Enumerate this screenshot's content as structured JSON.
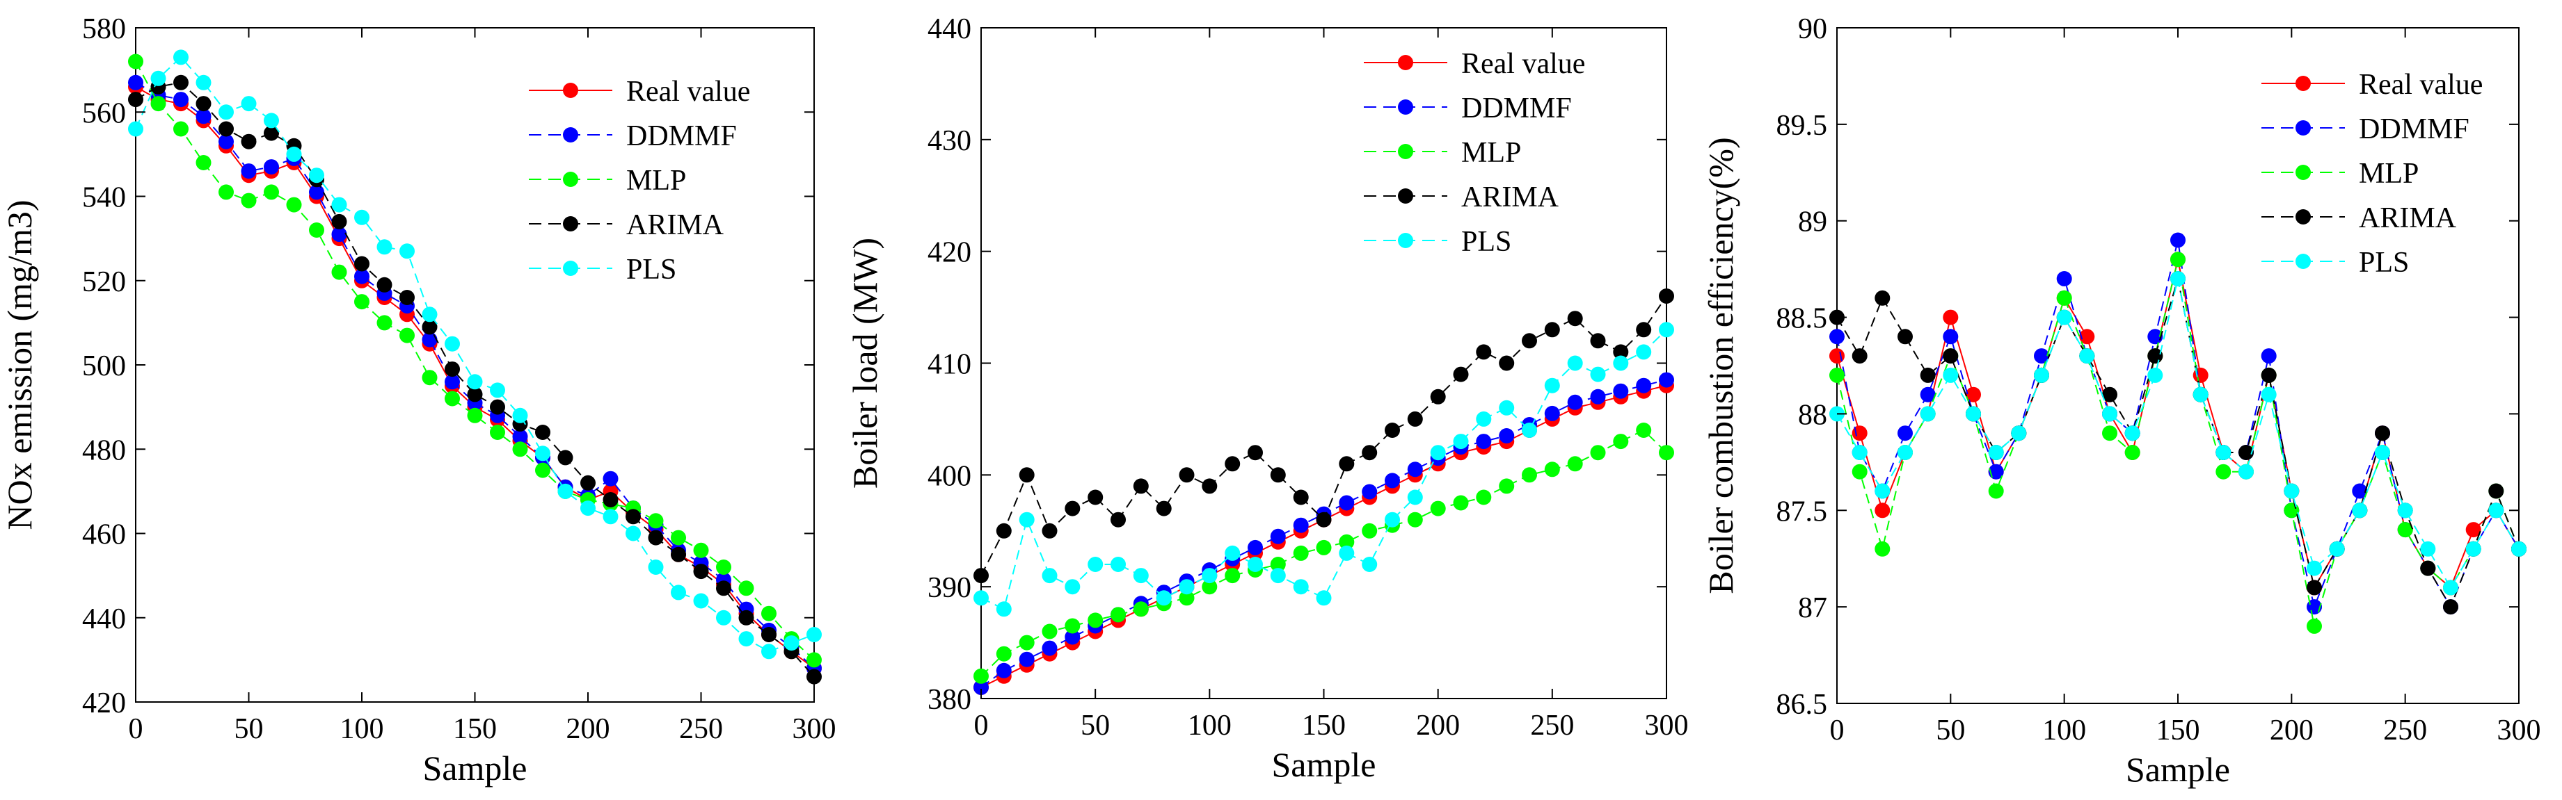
{
  "chart_data": [
    {
      "type": "line",
      "title": "",
      "xlabel": "Sample",
      "ylabel": "NOx emission (mg/m3)",
      "xlim": [
        0,
        300
      ],
      "ylim": [
        420,
        580
      ],
      "xticks": [
        0,
        50,
        100,
        150,
        200,
        250,
        300
      ],
      "yticks": [
        420,
        440,
        460,
        480,
        500,
        520,
        540,
        560,
        580
      ],
      "grid": false,
      "legend": "top-right",
      "markers": true,
      "series": [
        {
          "name": "Real value",
          "color": "#ff0000",
          "x": [
            0,
            10,
            20,
            30,
            40,
            50,
            60,
            70,
            80,
            90,
            100,
            110,
            120,
            130,
            140,
            150,
            160,
            170,
            180,
            190,
            200,
            210,
            220,
            230,
            240,
            250,
            260,
            270,
            280,
            290,
            300
          ],
          "y": [
            566,
            563,
            562,
            558,
            552,
            545,
            546,
            548,
            540,
            530,
            520,
            516,
            512,
            505,
            495,
            490,
            487,
            482,
            478,
            471,
            468,
            470,
            465,
            461,
            455,
            452,
            448,
            441,
            436,
            432,
            428
          ]
        },
        {
          "name": "DDMMF",
          "color": "#0000ff",
          "x": [
            0,
            10,
            20,
            30,
            40,
            50,
            60,
            70,
            80,
            90,
            100,
            110,
            120,
            130,
            140,
            150,
            160,
            170,
            180,
            190,
            200,
            210,
            220,
            230,
            240,
            250,
            260,
            270,
            280,
            290,
            300
          ],
          "y": [
            567,
            564,
            563,
            559,
            553,
            546,
            547,
            549,
            541,
            531,
            521,
            517,
            514,
            506,
            496,
            491,
            488,
            483,
            478,
            471,
            469,
            473,
            466,
            462,
            456,
            453,
            449,
            442,
            437,
            433,
            428
          ]
        },
        {
          "name": "MLP",
          "color": "#00ff00",
          "x": [
            0,
            10,
            20,
            30,
            40,
            50,
            60,
            70,
            80,
            90,
            100,
            110,
            120,
            130,
            140,
            150,
            160,
            170,
            180,
            190,
            200,
            210,
            220,
            230,
            240,
            250,
            260,
            270,
            280,
            290,
            300
          ],
          "y": [
            572,
            562,
            556,
            548,
            541,
            539,
            541,
            538,
            532,
            522,
            515,
            510,
            507,
            497,
            492,
            488,
            484,
            480,
            475,
            470,
            468,
            467,
            466,
            463,
            459,
            456,
            452,
            447,
            441,
            435,
            430
          ]
        },
        {
          "name": "ARIMA",
          "color": "#000000",
          "x": [
            0,
            10,
            20,
            30,
            40,
            50,
            60,
            70,
            80,
            90,
            100,
            110,
            120,
            130,
            140,
            150,
            160,
            170,
            180,
            190,
            200,
            210,
            220,
            230,
            240,
            250,
            260,
            270,
            280,
            290,
            300
          ],
          "y": [
            563,
            566,
            567,
            562,
            556,
            553,
            555,
            552,
            544,
            534,
            524,
            519,
            516,
            509,
            499,
            493,
            490,
            486,
            484,
            478,
            472,
            468,
            464,
            459,
            455,
            451,
            447,
            440,
            436,
            432,
            426
          ]
        },
        {
          "name": "PLS",
          "color": "#00ffff",
          "x": [
            0,
            10,
            20,
            30,
            40,
            50,
            60,
            70,
            80,
            90,
            100,
            110,
            120,
            130,
            140,
            150,
            160,
            170,
            180,
            190,
            200,
            210,
            220,
            230,
            240,
            250,
            260,
            270,
            280,
            290,
            300
          ],
          "y": [
            556,
            568,
            573,
            567,
            560,
            562,
            558,
            550,
            545,
            538,
            535,
            528,
            527,
            512,
            505,
            496,
            494,
            488,
            479,
            470,
            466,
            464,
            460,
            452,
            446,
            444,
            440,
            435,
            432,
            434,
            436
          ]
        }
      ]
    },
    {
      "type": "line",
      "title": "",
      "xlabel": "Sample",
      "ylabel": "Boiler load (MW)",
      "xlim": [
        0,
        300
      ],
      "ylim": [
        380,
        440
      ],
      "xticks": [
        0,
        50,
        100,
        150,
        200,
        250,
        300
      ],
      "yticks": [
        380,
        390,
        400,
        410,
        420,
        430,
        440
      ],
      "grid": false,
      "legend": "top-right",
      "markers": true,
      "series": [
        {
          "name": "Real value",
          "color": "#ff0000",
          "x": [
            0,
            10,
            20,
            30,
            40,
            50,
            60,
            70,
            80,
            90,
            100,
            110,
            120,
            130,
            140,
            150,
            160,
            170,
            180,
            190,
            200,
            210,
            220,
            230,
            240,
            250,
            260,
            270,
            280,
            290,
            300
          ],
          "y": [
            381,
            382,
            383,
            384,
            385,
            386,
            387,
            388,
            389,
            390,
            391,
            392,
            393,
            394,
            395,
            396,
            397,
            398,
            399,
            400,
            401,
            402,
            402.5,
            403,
            404,
            405,
            406,
            406.5,
            407,
            407.5,
            408
          ]
        },
        {
          "name": "DDMMF",
          "color": "#0000ff",
          "x": [
            0,
            10,
            20,
            30,
            40,
            50,
            60,
            70,
            80,
            90,
            100,
            110,
            120,
            130,
            140,
            150,
            160,
            170,
            180,
            190,
            200,
            210,
            220,
            230,
            240,
            250,
            260,
            270,
            280,
            290,
            300
          ],
          "y": [
            381,
            382.5,
            383.5,
            384.5,
            385.5,
            386.5,
            387.5,
            388.5,
            389.5,
            390.5,
            391.5,
            392.5,
            393.5,
            394.5,
            395.5,
            396.5,
            397.5,
            398.5,
            399.5,
            400.5,
            401.5,
            402.5,
            403,
            403.5,
            404.5,
            405.5,
            406.5,
            407,
            407.5,
            408,
            408.5
          ]
        },
        {
          "name": "MLP",
          "color": "#00ff00",
          "x": [
            0,
            10,
            20,
            30,
            40,
            50,
            60,
            70,
            80,
            90,
            100,
            110,
            120,
            130,
            140,
            150,
            160,
            170,
            180,
            190,
            200,
            210,
            220,
            230,
            240,
            250,
            260,
            270,
            280,
            290,
            300
          ],
          "y": [
            382,
            384,
            385,
            386,
            386.5,
            387,
            387.5,
            388,
            388.5,
            389,
            390,
            391,
            391.5,
            392,
            393,
            393.5,
            394,
            395,
            395.5,
            396,
            397,
            397.5,
            398,
            399,
            400,
            400.5,
            401,
            402,
            403,
            404,
            402
          ]
        },
        {
          "name": "ARIMA",
          "color": "#000000",
          "x": [
            0,
            10,
            20,
            30,
            40,
            50,
            60,
            70,
            80,
            90,
            100,
            110,
            120,
            130,
            140,
            150,
            160,
            170,
            180,
            190,
            200,
            210,
            220,
            230,
            240,
            250,
            260,
            270,
            280,
            290,
            300
          ],
          "y": [
            391,
            395,
            400,
            395,
            397,
            398,
            396,
            399,
            397,
            400,
            399,
            401,
            402,
            400,
            398,
            396,
            401,
            402,
            404,
            405,
            407,
            409,
            411,
            410,
            412,
            413,
            414,
            412,
            411,
            413,
            416
          ]
        },
        {
          "name": "PLS",
          "color": "#00ffff",
          "x": [
            0,
            10,
            20,
            30,
            40,
            50,
            60,
            70,
            80,
            90,
            100,
            110,
            120,
            130,
            140,
            150,
            160,
            170,
            180,
            190,
            200,
            210,
            220,
            230,
            240,
            250,
            260,
            270,
            280,
            290,
            300
          ],
          "y": [
            389,
            388,
            396,
            391,
            390,
            392,
            392,
            391,
            389,
            390,
            391,
            393,
            392,
            391,
            390,
            389,
            393,
            392,
            396,
            398,
            402,
            403,
            405,
            406,
            404,
            408,
            410,
            409,
            410,
            411,
            413
          ]
        }
      ]
    },
    {
      "type": "line",
      "title": "",
      "xlabel": "Sample",
      "ylabel": "Boiler combustion efficiency(%)",
      "xlim": [
        0,
        300
      ],
      "ylim": [
        86.5,
        90
      ],
      "xticks": [
        0,
        50,
        100,
        150,
        200,
        250,
        300
      ],
      "yticks": [
        86.5,
        87,
        87.5,
        88,
        88.5,
        89,
        89.5,
        90
      ],
      "grid": false,
      "legend": "top-right",
      "markers": true,
      "series": [
        {
          "name": "Real value",
          "color": "#ff0000",
          "x": [
            0,
            10,
            20,
            30,
            40,
            50,
            60,
            70,
            80,
            90,
            100,
            110,
            120,
            130,
            140,
            150,
            160,
            170,
            180,
            190,
            200,
            210,
            220,
            230,
            240,
            250,
            260,
            270,
            280,
            290,
            300
          ],
          "y": [
            88.3,
            87.9,
            87.5,
            87.8,
            88.0,
            88.5,
            88.1,
            87.7,
            87.9,
            88.2,
            88.6,
            88.4,
            88.0,
            87.8,
            88.3,
            88.8,
            88.2,
            87.8,
            87.7,
            88.2,
            87.6,
            87.1,
            87.3,
            87.5,
            87.9,
            87.4,
            87.2,
            87.1,
            87.4,
            87.5,
            87.3
          ]
        },
        {
          "name": "DDMMF",
          "color": "#0000ff",
          "x": [
            0,
            10,
            20,
            30,
            40,
            50,
            60,
            70,
            80,
            90,
            100,
            110,
            120,
            130,
            140,
            150,
            160,
            170,
            180,
            190,
            200,
            210,
            220,
            230,
            240,
            250,
            260,
            270,
            280,
            290,
            300
          ],
          "y": [
            88.4,
            87.8,
            87.6,
            87.9,
            88.1,
            88.4,
            88.0,
            87.7,
            87.9,
            88.3,
            88.7,
            88.3,
            88.0,
            87.9,
            88.4,
            88.9,
            88.1,
            87.8,
            87.8,
            88.3,
            87.5,
            87.0,
            87.3,
            87.6,
            87.9,
            87.4,
            87.2,
            87.0,
            87.3,
            87.5,
            87.3
          ]
        },
        {
          "name": "MLP",
          "color": "#00ff00",
          "x": [
            0,
            10,
            20,
            30,
            40,
            50,
            60,
            70,
            80,
            90,
            100,
            110,
            120,
            130,
            140,
            150,
            160,
            170,
            180,
            190,
            200,
            210,
            220,
            230,
            240,
            250,
            260,
            270,
            280,
            290,
            300
          ],
          "y": [
            88.2,
            87.7,
            87.3,
            87.8,
            88.0,
            88.3,
            88.0,
            87.6,
            87.9,
            88.2,
            88.6,
            88.3,
            87.9,
            87.8,
            88.3,
            88.8,
            88.1,
            87.7,
            87.7,
            88.2,
            87.5,
            86.9,
            87.3,
            87.5,
            87.8,
            87.4,
            87.2,
            87.1,
            87.3,
            87.6,
            87.3
          ]
        },
        {
          "name": "ARIMA",
          "color": "#000000",
          "x": [
            0,
            10,
            20,
            30,
            40,
            50,
            60,
            70,
            80,
            90,
            100,
            110,
            120,
            130,
            140,
            150,
            160,
            170,
            180,
            190,
            200,
            210,
            220,
            230,
            240,
            250,
            260,
            270,
            280,
            290,
            300
          ],
          "y": [
            88.5,
            88.3,
            88.6,
            88.4,
            88.2,
            88.3,
            88.0,
            87.8,
            87.9,
            88.2,
            88.5,
            88.3,
            88.1,
            87.9,
            88.3,
            88.7,
            88.1,
            87.8,
            87.8,
            88.2,
            87.6,
            87.1,
            87.3,
            87.5,
            87.9,
            87.5,
            87.2,
            87.0,
            87.3,
            87.6,
            87.3
          ]
        },
        {
          "name": "PLS",
          "color": "#00ffff",
          "x": [
            0,
            10,
            20,
            30,
            40,
            50,
            60,
            70,
            80,
            90,
            100,
            110,
            120,
            130,
            140,
            150,
            160,
            170,
            180,
            190,
            200,
            210,
            220,
            230,
            240,
            250,
            260,
            270,
            280,
            290,
            300
          ],
          "y": [
            88.0,
            87.8,
            87.6,
            87.8,
            88.0,
            88.2,
            88.0,
            87.8,
            87.9,
            88.2,
            88.5,
            88.3,
            88.0,
            87.9,
            88.2,
            88.7,
            88.1,
            87.8,
            87.7,
            88.1,
            87.6,
            87.2,
            87.3,
            87.5,
            87.8,
            87.5,
            87.3,
            87.1,
            87.3,
            87.5,
            87.3
          ]
        }
      ]
    }
  ]
}
